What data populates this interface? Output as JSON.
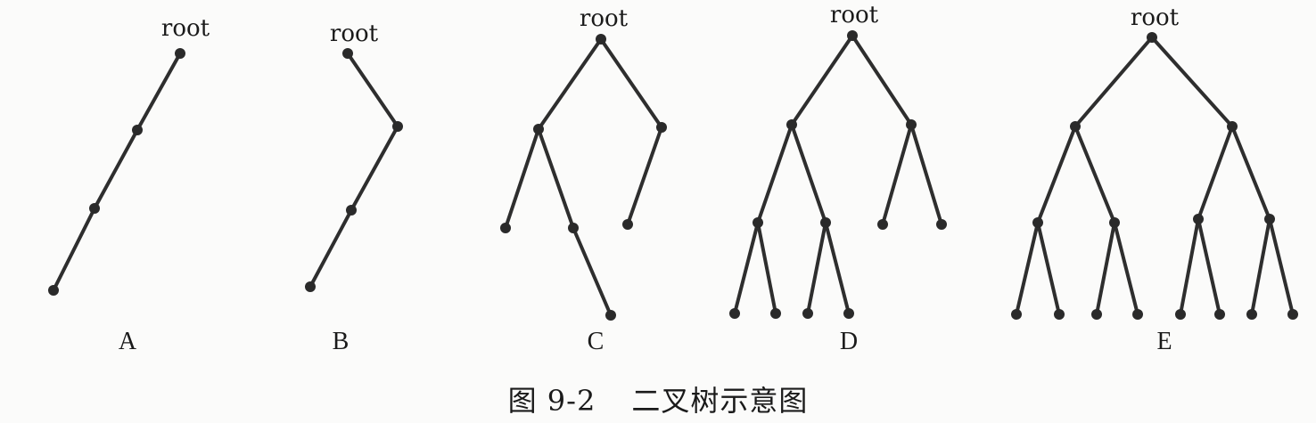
{
  "figure": {
    "caption_number": "图 9-2",
    "caption_text": "二叉树示意图",
    "root_label": "root",
    "trees": [
      {
        "label": "A",
        "root_label": "root"
      },
      {
        "label": "B",
        "root_label": "root"
      },
      {
        "label": "C",
        "root_label": "root"
      },
      {
        "label": "D",
        "root_label": "root"
      },
      {
        "label": "E",
        "root_label": "root"
      }
    ]
  }
}
